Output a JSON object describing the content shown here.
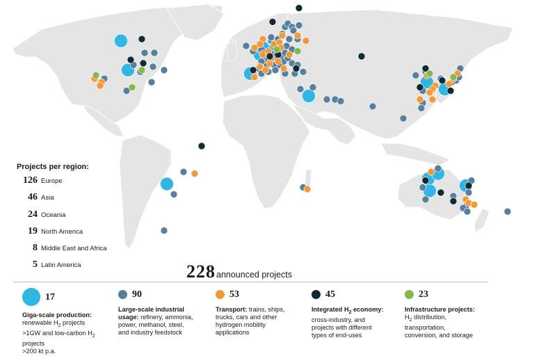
{
  "colors": {
    "ocean": "#ffffff",
    "land": "#e5e5e5",
    "border": "#ffffff",
    "giga": "#2fb6e3",
    "industrial": "#577f9e",
    "transport": "#f29a3a",
    "integrated": "#0f2a33",
    "infrastructure": "#84b84b"
  },
  "regions": {
    "heading": "Projects per region:",
    "items": [
      {
        "count": "126",
        "name": "Europe"
      },
      {
        "count": "46",
        "name": "Asia"
      },
      {
        "count": "24",
        "name": "Oceania"
      },
      {
        "count": "19",
        "name": "North America"
      },
      {
        "count": "8",
        "name": "Middle East and Africa"
      },
      {
        "count": "5",
        "name": "Latin America"
      }
    ]
  },
  "total": {
    "count": "228",
    "label": "announced projects"
  },
  "categories": [
    {
      "key": "giga",
      "count": "17",
      "title": "Giga-scale production:",
      "lines": [
        "renewable H₂ projects",
        ">1GW and low-carbon H₂",
        "projects",
        ">200 kt p.a."
      ]
    },
    {
      "key": "industrial",
      "count": "90",
      "title": "Large-scale industrial",
      "title2": "usage:",
      "rest": " refinery, ammonia,",
      "lines": [
        "power, methanol, steel,",
        "and industry feedstock"
      ]
    },
    {
      "key": "transport",
      "count": "53",
      "title": "Transport:",
      "rest": " trains, ships,",
      "lines": [
        "trucks, cars and other",
        "hydrogen mobility",
        "applications"
      ]
    },
    {
      "key": "integrated",
      "count": "45",
      "title": "Integrated H₂ economy:",
      "lines": [
        "cross-industry, and",
        "projects with different",
        "types of end-uses"
      ]
    },
    {
      "key": "infrastructure",
      "count": "23",
      "title": "Infrastructure projects:",
      "lines": [
        "H₂ distribution,",
        "transportation,",
        "conversion, and storage"
      ]
    }
  ],
  "markers": [
    {
      "type": "giga",
      "lon": -103,
      "lat": 59
    },
    {
      "type": "giga",
      "lon": -98,
      "lat": 42
    },
    {
      "type": "giga",
      "lon": -10,
      "lat": 40
    },
    {
      "type": "giga",
      "lon": 32,
      "lat": 27
    },
    {
      "type": "giga",
      "lon": -70,
      "lat": -24
    },
    {
      "type": "giga",
      "lon": 117,
      "lat": 35
    },
    {
      "type": "giga",
      "lon": 118,
      "lat": -21
    },
    {
      "type": "giga",
      "lon": 125,
      "lat": -18
    },
    {
      "type": "giga",
      "lon": 145,
      "lat": -25
    },
    {
      "type": "giga",
      "lon": -3,
      "lat": 51
    },
    {
      "type": "giga",
      "lon": 6,
      "lat": 53
    },
    {
      "type": "giga",
      "lon": -1,
      "lat": 55
    },
    {
      "type": "giga",
      "lon": 119,
      "lat": -28
    },
    {
      "type": "giga",
      "lon": 130,
      "lat": 31
    },
    {
      "type": "industrial",
      "lon": -79,
      "lat": 52
    },
    {
      "type": "industrial",
      "lon": -86,
      "lat": 52
    },
    {
      "type": "industrial",
      "lon": -94,
      "lat": 45
    },
    {
      "type": "industrial",
      "lon": -89,
      "lat": 41
    },
    {
      "type": "industrial",
      "lon": -80,
      "lat": 44
    },
    {
      "type": "industrial",
      "lon": -72,
      "lat": 42
    },
    {
      "type": "industrial",
      "lon": -81,
      "lat": 35
    },
    {
      "type": "industrial",
      "lon": -115,
      "lat": 37
    },
    {
      "type": "industrial",
      "lon": -99,
      "lat": 30
    },
    {
      "type": "industrial",
      "lon": -58,
      "lat": -17
    },
    {
      "type": "industrial",
      "lon": -72,
      "lat": -51
    },
    {
      "type": "industrial",
      "lon": -13,
      "lat": 56
    },
    {
      "type": "industrial",
      "lon": -8,
      "lat": 53
    },
    {
      "type": "industrial",
      "lon": -2,
      "lat": 54
    },
    {
      "type": "industrial",
      "lon": 0,
      "lat": 52
    },
    {
      "type": "industrial",
      "lon": 2,
      "lat": 50
    },
    {
      "type": "industrial",
      "lon": 4,
      "lat": 52
    },
    {
      "type": "industrial",
      "lon": 6,
      "lat": 51
    },
    {
      "type": "industrial",
      "lon": 8,
      "lat": 50
    },
    {
      "type": "industrial",
      "lon": 10,
      "lat": 52
    },
    {
      "type": "industrial",
      "lon": 12,
      "lat": 50
    },
    {
      "type": "industrial",
      "lon": 9,
      "lat": 48
    },
    {
      "type": "industrial",
      "lon": 5,
      "lat": 47
    },
    {
      "type": "industrial",
      "lon": 14,
      "lat": 47
    },
    {
      "type": "industrial",
      "lon": 11,
      "lat": 45
    },
    {
      "type": "industrial",
      "lon": 7,
      "lat": 45
    },
    {
      "type": "industrial",
      "lon": 2,
      "lat": 45
    },
    {
      "type": "industrial",
      "lon": -4,
      "lat": 43
    },
    {
      "type": "industrial",
      "lon": -2,
      "lat": 40
    },
    {
      "type": "industrial",
      "lon": 3,
      "lat": 41
    },
    {
      "type": "industrial",
      "lon": 10,
      "lat": 56
    },
    {
      "type": "industrial",
      "lon": 8,
      "lat": 58
    },
    {
      "type": "industrial",
      "lon": 5,
      "lat": 59
    },
    {
      "type": "industrial",
      "lon": 5,
      "lat": 61
    },
    {
      "type": "industrial",
      "lon": 10,
      "lat": 60
    },
    {
      "type": "industrial",
      "lon": 13,
      "lat": 63
    },
    {
      "type": "industrial",
      "lon": 15,
      "lat": 67
    },
    {
      "type": "industrial",
      "lon": 17,
      "lat": 69
    },
    {
      "type": "industrial",
      "lon": 20,
      "lat": 67
    },
    {
      "type": "industrial",
      "lon": 25,
      "lat": 68
    },
    {
      "type": "industrial",
      "lon": 21,
      "lat": 65
    },
    {
      "type": "industrial",
      "lon": 24,
      "lat": 60
    },
    {
      "type": "industrial",
      "lon": 18,
      "lat": 60
    },
    {
      "type": "industrial",
      "lon": 16,
      "lat": 56
    },
    {
      "type": "industrial",
      "lon": 20,
      "lat": 54
    },
    {
      "type": "industrial",
      "lon": 17,
      "lat": 49
    },
    {
      "type": "industrial",
      "lon": 20,
      "lat": 46
    },
    {
      "type": "industrial",
      "lon": 24,
      "lat": 45
    },
    {
      "type": "industrial",
      "lon": 22,
      "lat": 40
    },
    {
      "type": "industrial",
      "lon": 15,
      "lat": 40
    },
    {
      "type": "industrial",
      "lon": 28,
      "lat": 41
    },
    {
      "type": "industrial",
      "lon": 8,
      "lat": 42
    },
    {
      "type": "industrial",
      "lon": 15,
      "lat": 52
    },
    {
      "type": "industrial",
      "lon": 1,
      "lat": 48
    },
    {
      "type": "industrial",
      "lon": 3,
      "lat": 48
    },
    {
      "type": "industrial",
      "lon": -2,
      "lat": 47
    },
    {
      "type": "industrial",
      "lon": 26,
      "lat": 31
    },
    {
      "type": "industrial",
      "lon": 35,
      "lat": 32
    },
    {
      "type": "industrial",
      "lon": 45,
      "lat": 25
    },
    {
      "type": "industrial",
      "lon": 51,
      "lat": 25
    },
    {
      "type": "industrial",
      "lon": 55,
      "lat": 24
    },
    {
      "type": "industrial",
      "lon": 78,
      "lat": 21
    },
    {
      "type": "industrial",
      "lon": 100,
      "lat": 14
    },
    {
      "type": "industrial",
      "lon": 28,
      "lat": -26
    },
    {
      "type": "industrial",
      "lon": 109,
      "lat": 39
    },
    {
      "type": "industrial",
      "lon": 116,
      "lat": 41
    },
    {
      "type": "industrial",
      "lon": 121,
      "lat": 31
    },
    {
      "type": "industrial",
      "lon": 114,
      "lat": 30
    },
    {
      "type": "industrial",
      "lon": 114,
      "lat": 23
    },
    {
      "type": "industrial",
      "lon": 113,
      "lat": 20
    },
    {
      "type": "industrial",
      "lon": 127,
      "lat": 37
    },
    {
      "type": "industrial",
      "lon": 135,
      "lat": 35
    },
    {
      "type": "industrial",
      "lon": 138,
      "lat": 36
    },
    {
      "type": "industrial",
      "lon": 140,
      "lat": 38
    },
    {
      "type": "industrial",
      "lon": 141,
      "lat": 43
    },
    {
      "type": "industrial",
      "lon": 125,
      "lat": -15
    },
    {
      "type": "industrial",
      "lon": 114,
      "lat": -26
    },
    {
      "type": "industrial",
      "lon": 116,
      "lat": -33
    },
    {
      "type": "industrial",
      "lon": 136,
      "lat": -31
    },
    {
      "type": "industrial",
      "lon": 149,
      "lat": -22
    },
    {
      "type": "industrial",
      "lon": 147,
      "lat": -29
    },
    {
      "type": "industrial",
      "lon": 145,
      "lat": -37
    },
    {
      "type": "industrial",
      "lon": 143,
      "lat": -38
    },
    {
      "type": "industrial",
      "lon": 146,
      "lat": -40
    },
    {
      "type": "industrial",
      "lon": 175,
      "lat": -40
    },
    {
      "type": "industrial",
      "lon": -65,
      "lat": -30
    },
    {
      "type": "transport",
      "lon": -117,
      "lat": 35
    },
    {
      "type": "transport",
      "lon": -122,
      "lat": 37
    },
    {
      "type": "transport",
      "lon": -118,
      "lat": 33
    },
    {
      "type": "transport",
      "lon": -1,
      "lat": 60
    },
    {
      "type": "transport",
      "lon": -3,
      "lat": 57
    },
    {
      "type": "transport",
      "lon": -7,
      "lat": 55
    },
    {
      "type": "transport",
      "lon": -1,
      "lat": 51
    },
    {
      "type": "transport",
      "lon": 3,
      "lat": 53
    },
    {
      "type": "transport",
      "lon": 7,
      "lat": 57
    },
    {
      "type": "transport",
      "lon": 11,
      "lat": 58
    },
    {
      "type": "transport",
      "lon": 12,
      "lat": 55
    },
    {
      "type": "transport",
      "lon": 24,
      "lat": 62
    },
    {
      "type": "transport",
      "lon": 30,
      "lat": 59
    },
    {
      "type": "transport",
      "lon": 13,
      "lat": 62
    },
    {
      "type": "transport",
      "lon": 18,
      "lat": 51
    },
    {
      "type": "transport",
      "lon": 10,
      "lat": 47
    },
    {
      "type": "transport",
      "lon": 4,
      "lat": 46
    },
    {
      "type": "transport",
      "lon": -3,
      "lat": 44
    },
    {
      "type": "transport",
      "lon": 14,
      "lat": 43
    },
    {
      "type": "transport",
      "lon": -7,
      "lat": 38
    },
    {
      "type": "transport",
      "lon": 1,
      "lat": 42
    },
    {
      "type": "transport",
      "lon": 5,
      "lat": 49
    },
    {
      "type": "transport",
      "lon": -50,
      "lat": -18
    },
    {
      "type": "transport",
      "lon": 31,
      "lat": -27
    },
    {
      "type": "transport",
      "lon": 117,
      "lat": 39
    },
    {
      "type": "transport",
      "lon": 123,
      "lat": 33
    },
    {
      "type": "transport",
      "lon": 121,
      "lat": 31
    },
    {
      "type": "transport",
      "lon": 119,
      "lat": 29
    },
    {
      "type": "transport",
      "lon": 112,
      "lat": 25
    },
    {
      "type": "transport",
      "lon": 121,
      "lat": 25
    },
    {
      "type": "transport",
      "lon": 133,
      "lat": 34
    },
    {
      "type": "transport",
      "lon": 136,
      "lat": 37
    },
    {
      "type": "transport",
      "lon": 139,
      "lat": 40
    },
    {
      "type": "transport",
      "lon": 145,
      "lat": -33
    },
    {
      "type": "transport",
      "lon": 120,
      "lat": -17
    },
    {
      "type": "transport",
      "lon": 147,
      "lat": -35
    },
    {
      "type": "transport",
      "lon": 151,
      "lat": -36
    },
    {
      "type": "integrated",
      "lon": -88,
      "lat": 60
    },
    {
      "type": "integrated",
      "lon": -96,
      "lat": 48
    },
    {
      "type": "integrated",
      "lon": -87,
      "lat": 46
    },
    {
      "type": "integrated",
      "lon": 6,
      "lat": 70
    },
    {
      "type": "integrated",
      "lon": 25,
      "lat": 78
    },
    {
      "type": "integrated",
      "lon": 10,
      "lat": 51
    },
    {
      "type": "integrated",
      "lon": 4,
      "lat": 50
    },
    {
      "type": "integrated",
      "lon": 23,
      "lat": 43
    },
    {
      "type": "integrated",
      "lon": -8,
      "lat": 42
    },
    {
      "type": "integrated",
      "lon": 70,
      "lat": 50
    },
    {
      "type": "integrated",
      "lon": 116,
      "lat": 43
    },
    {
      "type": "integrated",
      "lon": 128,
      "lat": 36
    },
    {
      "type": "integrated",
      "lon": 134,
      "lat": 30
    },
    {
      "type": "integrated",
      "lon": 112,
      "lat": 32
    },
    {
      "type": "integrated",
      "lon": 127,
      "lat": -29
    },
    {
      "type": "integrated",
      "lon": 147,
      "lat": -25
    },
    {
      "type": "integrated",
      "lon": 116,
      "lat": -22
    },
    {
      "type": "integrated",
      "lon": 136,
      "lat": -34
    },
    {
      "type": "integrated",
      "lon": -45,
      "lat": -2
    },
    {
      "type": "infrastructure",
      "lon": -88,
      "lat": 42
    },
    {
      "type": "infrastructure",
      "lon": -95,
      "lat": 32
    },
    {
      "type": "infrastructure",
      "lon": 24,
      "lat": 53
    },
    {
      "type": "infrastructure",
      "lon": 9,
      "lat": 54
    },
    {
      "type": "infrastructure",
      "lon": -121,
      "lat": 39
    },
    {
      "type": "infrastructure",
      "lon": 136,
      "lat": 38
    },
    {
      "type": "infrastructure",
      "lon": 119,
      "lat": 40
    }
  ]
}
